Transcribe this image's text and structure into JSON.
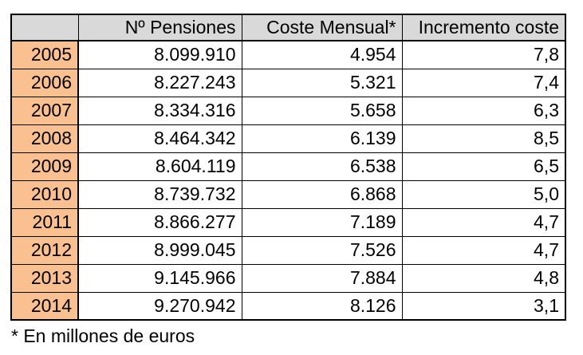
{
  "display": {
    "headers": [
      "",
      "Nº Pensiones",
      "Coste Mensual*",
      "Incremento coste"
    ],
    "rows": [
      [
        "2005",
        "8.099.910",
        "4.954",
        "7,8"
      ],
      [
        "2006",
        "8.227.243",
        "5.321",
        "7,4"
      ],
      [
        "2007",
        "8.334.316",
        "5.658",
        "6,3"
      ],
      [
        "2008",
        "8.464.342",
        "6.139",
        "8,5"
      ],
      [
        "2009",
        "8.604.119",
        "6.538",
        "6,5"
      ],
      [
        "2010",
        "8.739.732",
        "6.868",
        "5,0"
      ],
      [
        "2011",
        "8.866.277",
        "7.189",
        "4,7"
      ],
      [
        "2012",
        "8.999.045",
        "7.526",
        "4,7"
      ],
      [
        "2013",
        "9.145.966",
        "7.884",
        "4,8"
      ],
      [
        "2014",
        "9.270.942",
        "8.126",
        "3,1"
      ]
    ],
    "footnote": "* En millones de euros"
  },
  "colors": {
    "header_bg": "#d9d9d9",
    "year_bg": "#fac090",
    "border": "#000000",
    "text": "#000000",
    "page_bg": "#ffffff"
  },
  "chart_data": {
    "type": "table",
    "columns": [
      "",
      "Nº Pensiones",
      "Coste Mensual*",
      "Incremento coste"
    ],
    "categories": [
      2005,
      2006,
      2007,
      2008,
      2009,
      2010,
      2011,
      2012,
      2013,
      2014
    ],
    "series": [
      {
        "name": "Nº Pensiones",
        "values": [
          8099910,
          8227243,
          8334316,
          8464342,
          8604119,
          8739732,
          8866277,
          8999045,
          9145966,
          9270942
        ]
      },
      {
        "name": "Coste Mensual (millones de euros)",
        "values": [
          4954,
          5321,
          5658,
          6139,
          6538,
          6868,
          7189,
          7526,
          7884,
          8126
        ]
      },
      {
        "name": "Incremento coste (%)",
        "values": [
          7.8,
          7.4,
          6.3,
          8.5,
          6.5,
          5.0,
          4.7,
          4.7,
          4.8,
          3.1
        ]
      }
    ],
    "footnote": "* En millones de euros"
  }
}
